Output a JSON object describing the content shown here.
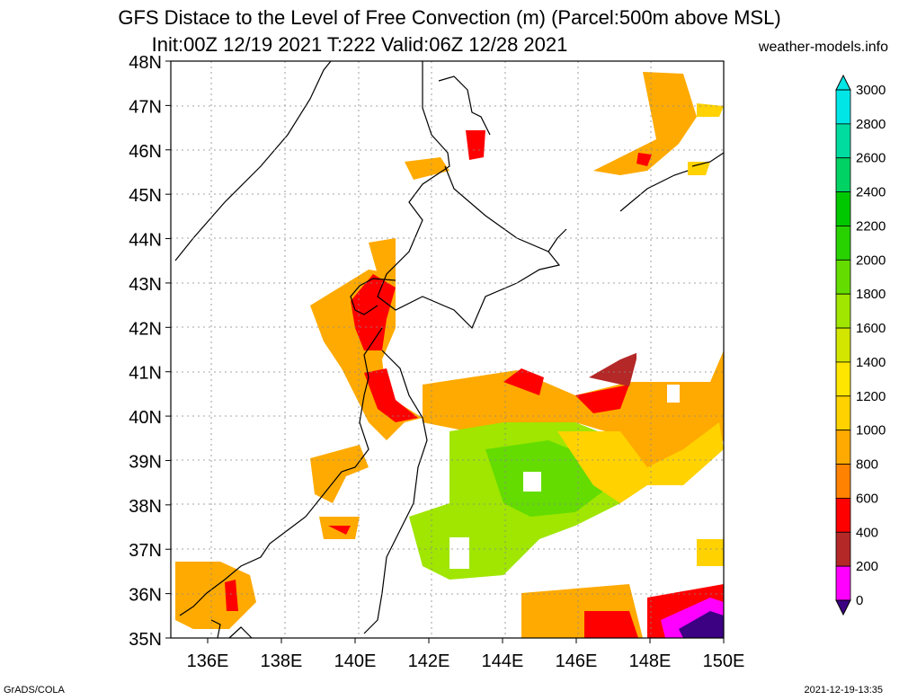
{
  "title": {
    "line1": "GFS Distace to the Level of Free Convection (m) (Parcel:500m above MSL)",
    "line2": "Init:00Z 12/19 2021 T:222 Valid:06Z 12/28 2021"
  },
  "site_label": "weather-models.info",
  "map": {
    "lat_labels": [
      "48N",
      "47N",
      "46N",
      "45N",
      "44N",
      "43N",
      "42N",
      "41N",
      "40N",
      "39N",
      "38N",
      "37N",
      "36N",
      "35N"
    ],
    "lon_labels": [
      "136E",
      "138E",
      "140E",
      "142E",
      "144E",
      "146E",
      "148E",
      "150E"
    ]
  },
  "colorbar": {
    "labels": [
      "3000",
      "2800",
      "2600",
      "2400",
      "2200",
      "2000",
      "1800",
      "1600",
      "1400",
      "1200",
      "1000",
      "800",
      "600",
      "400",
      "200",
      "0"
    ],
    "colors": [
      "#00e6e6",
      "#00dca0",
      "#00d264",
      "#00c800",
      "#28d200",
      "#64dc00",
      "#a0e600",
      "#d2e600",
      "#ffe600",
      "#ffd200",
      "#ffaa00",
      "#ff8200",
      "#ff0000",
      "#b42828",
      "#ff00ff",
      "#3c0082"
    ]
  },
  "footer": {
    "left": "GrADS/COLA",
    "right": "2021-12-19-13:35"
  }
}
